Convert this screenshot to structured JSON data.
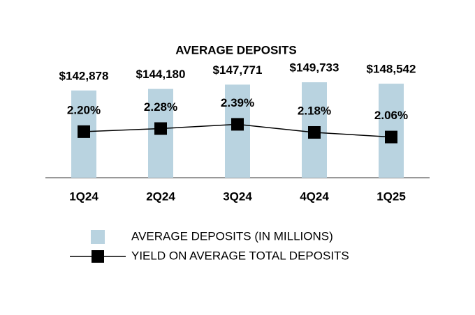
{
  "chart_data": {
    "type": "bar_line",
    "title": "AVERAGE DEPOSITS",
    "categories": [
      "1Q24",
      "2Q24",
      "3Q24",
      "4Q24",
      "1Q25"
    ],
    "ylim": [
      70000,
      155000
    ],
    "y2lim": [
      1.0,
      3.65
    ],
    "series": [
      {
        "name": "AVERAGE DEPOSITS (IN MILLIONS)",
        "type": "bar",
        "color": "#b9d3e0",
        "values": [
          142878,
          144180,
          147771,
          149733,
          148542
        ],
        "value_labels": [
          "$142,878",
          "$144,180",
          "$147,771",
          "$149,733",
          "$148,542"
        ]
      },
      {
        "name": "YIELD ON AVERAGE TOTAL DEPOSITS",
        "type": "line",
        "axis": "y2",
        "color": "#000000",
        "values": [
          2.2,
          2.28,
          2.39,
          2.18,
          2.06
        ],
        "value_labels": [
          "2.20%",
          "2.28%",
          "2.39%",
          "2.18%",
          "2.06%"
        ]
      }
    ]
  }
}
